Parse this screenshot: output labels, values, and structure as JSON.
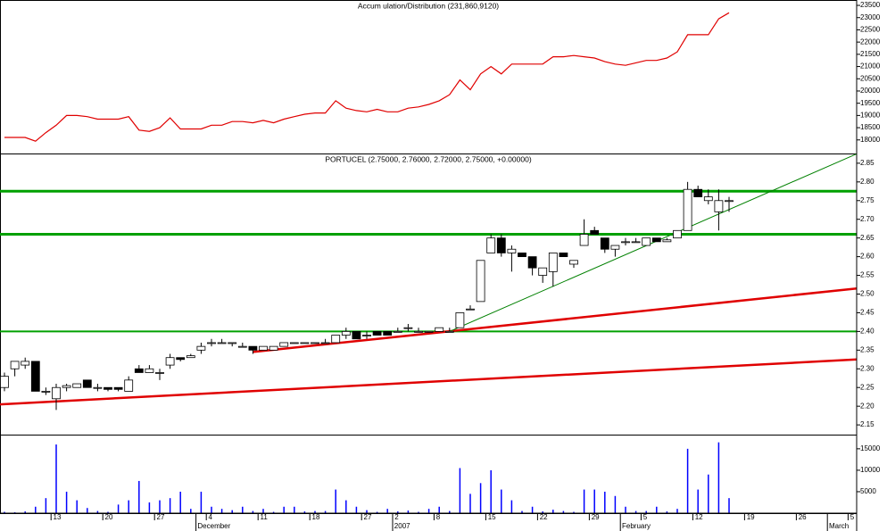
{
  "chart_data": [
    {
      "type": "line",
      "title": "Accum ulation/Distribution (231,860,9120)",
      "color": "#e00000",
      "ylim": [
        17445,
        23720
      ],
      "yticks": [
        18000,
        18500,
        19000,
        19500,
        20000,
        20500,
        21000,
        21500,
        22000,
        22500,
        23000,
        23500
      ],
      "values": [
        18100,
        18100,
        18100,
        17950,
        18300,
        18600,
        19000,
        19000,
        18950,
        18850,
        18850,
        18850,
        18950,
        18400,
        18350,
        18500,
        18900,
        18450,
        18450,
        18450,
        18600,
        18600,
        18750,
        18750,
        18700,
        18800,
        18700,
        18850,
        18950,
        19050,
        19100,
        19100,
        19600,
        19300,
        19200,
        19150,
        19250,
        19150,
        19150,
        19300,
        19350,
        19450,
        19600,
        19850,
        20450,
        20050,
        20700,
        21000,
        20700,
        21100,
        21100,
        21100,
        21100,
        21400,
        21400,
        21450,
        21400,
        21350,
        21200,
        21100,
        21050,
        21150,
        21250,
        21250,
        21350,
        21600,
        22300,
        22300,
        22300,
        22950,
        23200
      ]
    },
    {
      "type": "candlestick",
      "title": "PORTUCEL (2.75000, 2.76000, 2.72000, 2.75000, +0.00000)",
      "ylim": [
        2.124,
        2.876
      ],
      "yticks": [
        2.15,
        {
          "value": 2.2,
          "label": "2.20"
        },
        2.25,
        {
          "value": 2.3,
          "label": "2.30"
        },
        2.35,
        {
          "value": 2.4,
          "label": "2.40"
        },
        2.45,
        {
          "value": 2.5,
          "label": "2.50"
        },
        2.55,
        {
          "value": 2.6,
          "label": "2.60"
        },
        2.65,
        {
          "value": 2.7,
          "label": "2.70"
        },
        2.75,
        {
          "value": 2.8,
          "label": "2.80"
        },
        2.85
      ],
      "up_color": "#ffffff",
      "down_color": "#000000",
      "open": [
        2.25,
        2.3,
        2.31,
        2.32,
        2.24,
        2.22,
        2.25,
        2.25,
        2.27,
        2.25,
        2.25,
        2.25,
        2.24,
        2.3,
        2.29,
        2.29,
        2.31,
        2.33,
        2.33,
        2.35,
        2.37,
        2.37,
        2.37,
        2.36,
        2.36,
        2.35,
        2.35,
        2.36,
        2.37,
        2.37,
        2.37,
        2.37,
        2.37,
        2.39,
        2.4,
        2.39,
        2.4,
        2.4,
        2.4,
        2.41,
        2.4,
        2.4,
        2.4,
        2.4,
        2.41,
        2.46,
        2.48,
        2.61,
        2.65,
        2.61,
        2.61,
        2.6,
        2.55,
        2.56,
        2.61,
        2.58,
        2.63,
        2.67,
        2.65,
        2.62,
        2.64,
        2.64,
        2.63,
        2.65,
        2.64,
        2.65,
        2.67,
        2.78,
        2.75,
        2.72,
        2.75
      ],
      "high": [
        2.29,
        2.32,
        2.33,
        2.32,
        2.25,
        2.26,
        2.26,
        2.26,
        2.27,
        2.26,
        2.25,
        2.25,
        2.28,
        2.31,
        2.31,
        2.3,
        2.34,
        2.33,
        2.34,
        2.37,
        2.38,
        2.38,
        2.37,
        2.37,
        2.36,
        2.36,
        2.36,
        2.37,
        2.37,
        2.37,
        2.37,
        2.38,
        2.39,
        2.41,
        2.4,
        2.4,
        2.4,
        2.4,
        2.41,
        2.42,
        2.41,
        2.4,
        2.41,
        2.41,
        2.45,
        2.47,
        2.59,
        2.66,
        2.66,
        2.63,
        2.61,
        2.6,
        2.57,
        2.61,
        2.61,
        2.59,
        2.7,
        2.68,
        2.65,
        2.63,
        2.65,
        2.65,
        2.65,
        2.65,
        2.65,
        2.67,
        2.8,
        2.79,
        2.78,
        2.78,
        2.76
      ],
      "low": [
        2.24,
        2.28,
        2.3,
        2.24,
        2.23,
        2.19,
        2.24,
        2.25,
        2.25,
        2.24,
        2.24,
        2.24,
        2.24,
        2.29,
        2.29,
        2.27,
        2.3,
        2.32,
        2.33,
        2.34,
        2.36,
        2.37,
        2.36,
        2.36,
        2.34,
        2.35,
        2.35,
        2.36,
        2.37,
        2.37,
        2.37,
        2.37,
        2.37,
        2.38,
        2.38,
        2.38,
        2.39,
        2.39,
        2.4,
        2.4,
        2.4,
        2.4,
        2.4,
        2.4,
        2.41,
        2.46,
        2.48,
        2.61,
        2.6,
        2.56,
        2.6,
        2.55,
        2.53,
        2.52,
        2.6,
        2.57,
        2.63,
        2.66,
        2.61,
        2.6,
        2.63,
        2.64,
        2.63,
        2.64,
        2.64,
        2.65,
        2.67,
        2.76,
        2.74,
        2.67,
        2.72
      ],
      "close": [
        2.28,
        2.32,
        2.32,
        2.24,
        2.24,
        2.25,
        2.255,
        2.26,
        2.25,
        2.25,
        2.245,
        2.245,
        2.27,
        2.29,
        2.3,
        2.29,
        2.33,
        2.325,
        2.335,
        2.36,
        2.37,
        2.37,
        2.37,
        2.36,
        2.35,
        2.36,
        2.36,
        2.37,
        2.37,
        2.37,
        2.37,
        2.37,
        2.39,
        2.4,
        2.38,
        2.39,
        2.39,
        2.39,
        2.4,
        2.41,
        2.4,
        2.4,
        2.41,
        2.4,
        2.45,
        2.46,
        2.59,
        2.65,
        2.61,
        2.62,
        2.6,
        2.57,
        2.57,
        2.61,
        2.6,
        2.59,
        2.66,
        2.66,
        2.62,
        2.63,
        2.64,
        2.64,
        2.65,
        2.64,
        2.645,
        2.67,
        2.78,
        2.76,
        2.76,
        2.75,
        2.75
      ],
      "levels": [
        {
          "value": 2.775,
          "color": "#00a000"
        },
        {
          "value": 2.66,
          "color": "#00a000"
        },
        {
          "value": 2.4,
          "color": "#00a000"
        }
      ],
      "trendlines": [
        {
          "color": "#e00000",
          "points": [
            [
              -0.43,
              2.205
            ],
            [
              82.33,
              2.325
            ]
          ]
        },
        {
          "color": "#e00000",
          "points": [
            [
              24,
              2.345
            ],
            [
              82.33,
              2.515
            ]
          ]
        },
        {
          "color": "#008000",
          "points": [
            [
              43,
              2.4
            ],
            [
              82.33,
              2.875
            ]
          ]
        }
      ]
    },
    {
      "type": "bar",
      "color": "#0000ff",
      "ylim": [
        0,
        18300
      ],
      "yticks": [
        5000,
        10000,
        15000
      ],
      "values": [
        300,
        200,
        400,
        1500,
        3500,
        16000,
        5000,
        3000,
        1200,
        500,
        300,
        2000,
        3000,
        7500,
        2500,
        3000,
        3500,
        5000,
        1000,
        5000,
        1500,
        1000,
        700,
        1500,
        500,
        1000,
        300,
        1500,
        1500,
        400,
        500,
        500,
        5500,
        3000,
        1500,
        700,
        300,
        1000,
        400,
        600,
        300,
        1000,
        1500,
        500,
        10500,
        4500,
        7000,
        10000,
        5500,
        3000,
        500,
        1500,
        400,
        800,
        500,
        300,
        5500,
        5500,
        5000,
        4000,
        1500,
        500,
        500,
        1500,
        400,
        1000,
        15000,
        5500,
        9000,
        16500,
        3500,
        null,
        null,
        null,
        null,
        null,
        null,
        null,
        null,
        null,
        null,
        null,
        null
      ],
      "categories": [
        null,
        null,
        null,
        null,
        null,
        "13",
        null,
        null,
        null,
        null,
        "20",
        null,
        null,
        null,
        null,
        "27",
        null,
        null,
        null,
        null,
        "4",
        null,
        null,
        null,
        null,
        "11",
        null,
        null,
        null,
        null,
        "18",
        null,
        null,
        null,
        null,
        "27",
        null,
        null,
        "2",
        null,
        null,
        null,
        "8",
        null,
        null,
        null,
        null,
        "15",
        null,
        null,
        null,
        null,
        "22",
        null,
        null,
        null,
        null,
        "29",
        null,
        null,
        null,
        null,
        "5",
        null,
        null,
        null,
        null,
        "12",
        null,
        null,
        null,
        null,
        "19",
        null,
        null,
        null,
        null,
        "26",
        null,
        null,
        null,
        null,
        "5"
      ],
      "months": [
        null,
        null,
        null,
        null,
        null,
        null,
        null,
        null,
        null,
        null,
        null,
        null,
        null,
        null,
        null,
        null,
        null,
        null,
        null,
        "December",
        null,
        null,
        null,
        null,
        null,
        null,
        null,
        null,
        null,
        null,
        null,
        null,
        null,
        null,
        null,
        null,
        null,
        null,
        "2007",
        null,
        null,
        null,
        null,
        null,
        null,
        null,
        null,
        null,
        null,
        null,
        null,
        null,
        null,
        null,
        null,
        null,
        null,
        null,
        null,
        null,
        "February",
        null,
        null,
        null,
        null,
        null,
        null,
        null,
        null,
        null,
        null,
        null,
        null,
        null,
        null,
        null,
        null,
        null,
        null,
        null,
        "March",
        null,
        null
      ]
    }
  ]
}
